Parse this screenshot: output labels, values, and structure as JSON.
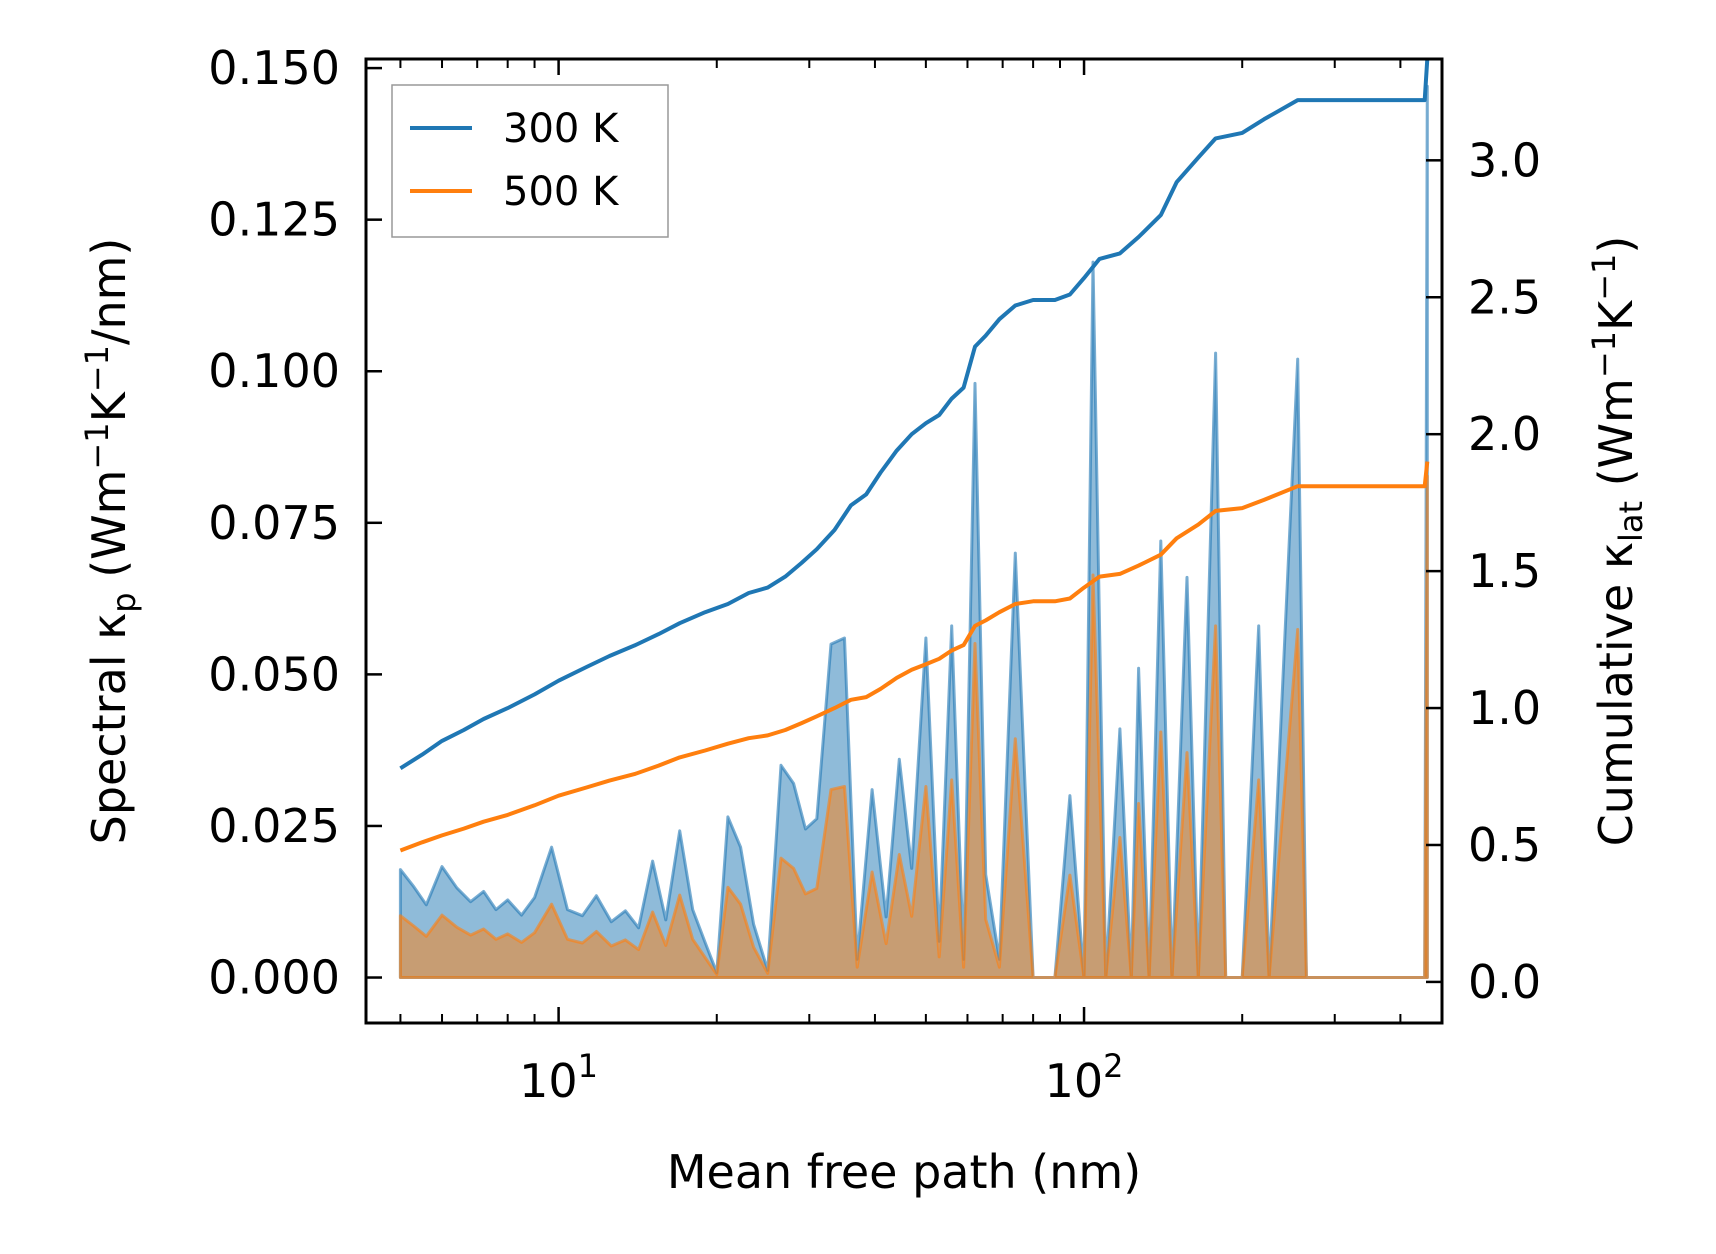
{
  "chart_data": {
    "type": "line",
    "xscale": "log",
    "xlabel": "Mean free path (nm)",
    "ylabel_left": {
      "prefix": "Spectral κ",
      "sub": "p",
      "units_prefix": " (Wm",
      "sup1": "−1",
      "units_mid": "K",
      "sup2": "−1",
      "units_suffix": "/nm)"
    },
    "ylabel_right": {
      "prefix": "Cumulative κ",
      "sub": "lat",
      "units_prefix": " (Wm",
      "sup1": "−1",
      "units_mid": "K",
      "sup2": "−1",
      "units_suffix": ")"
    },
    "xlim": [
      4.3,
      480
    ],
    "ylim_left": [
      -0.0075,
      0.1515
    ],
    "ylim_right": [
      -0.15,
      3.37
    ],
    "x_ticks": [
      {
        "value": 10,
        "base": "10",
        "exp": "1"
      },
      {
        "value": 100,
        "base": "10",
        "exp": "2"
      }
    ],
    "left_ticks": [
      {
        "value": 0.0,
        "label": "0.000"
      },
      {
        "value": 0.025,
        "label": "0.025"
      },
      {
        "value": 0.05,
        "label": "0.050"
      },
      {
        "value": 0.075,
        "label": "0.075"
      },
      {
        "value": 0.1,
        "label": "0.100"
      },
      {
        "value": 0.125,
        "label": "0.125"
      },
      {
        "value": 0.15,
        "label": "0.150"
      }
    ],
    "right_ticks": [
      {
        "value": 0.0,
        "label": "0.0"
      },
      {
        "value": 0.5,
        "label": "0.5"
      },
      {
        "value": 1.0,
        "label": "1.0"
      },
      {
        "value": 1.5,
        "label": "1.5"
      },
      {
        "value": 2.0,
        "label": "2.0"
      },
      {
        "value": 2.5,
        "label": "2.5"
      },
      {
        "value": 3.0,
        "label": "3.0"
      }
    ],
    "legend": {
      "position": "upper-left"
    },
    "series": [
      {
        "name": "300 K",
        "color": "#1f77b4",
        "cumulative": [
          [
            5.0,
            0.78
          ],
          [
            5.5,
            0.83
          ],
          [
            6.0,
            0.88
          ],
          [
            6.6,
            0.92
          ],
          [
            7.2,
            0.96
          ],
          [
            8.0,
            1.0
          ],
          [
            9.0,
            1.05
          ],
          [
            10.0,
            1.1
          ],
          [
            11.3,
            1.15
          ],
          [
            12.5,
            1.19
          ],
          [
            14.0,
            1.23
          ],
          [
            15.5,
            1.27
          ],
          [
            17.0,
            1.31
          ],
          [
            19.0,
            1.35
          ],
          [
            21.0,
            1.38
          ],
          [
            23.0,
            1.42
          ],
          [
            25.0,
            1.44
          ],
          [
            27.0,
            1.48
          ],
          [
            29.0,
            1.53
          ],
          [
            31.0,
            1.58
          ],
          [
            33.5,
            1.65
          ],
          [
            36.0,
            1.74
          ],
          [
            38.5,
            1.78
          ],
          [
            41.0,
            1.86
          ],
          [
            44.0,
            1.94
          ],
          [
            47.0,
            2.0
          ],
          [
            50.0,
            2.04
          ],
          [
            53.0,
            2.07
          ],
          [
            56.0,
            2.13
          ],
          [
            59.0,
            2.17
          ],
          [
            62.0,
            2.32
          ],
          [
            65.0,
            2.36
          ],
          [
            69.0,
            2.42
          ],
          [
            74.0,
            2.47
          ],
          [
            80.0,
            2.49
          ],
          [
            88.0,
            2.49
          ],
          [
            94.0,
            2.51
          ],
          [
            100.0,
            2.57
          ],
          [
            107.0,
            2.64
          ],
          [
            117.0,
            2.66
          ],
          [
            127.0,
            2.72
          ],
          [
            140.0,
            2.8
          ],
          [
            150.0,
            2.92
          ],
          [
            165.0,
            3.01
          ],
          [
            178.0,
            3.08
          ],
          [
            200.0,
            3.1
          ],
          [
            220.0,
            3.15
          ],
          [
            255.0,
            3.22
          ],
          [
            300.0,
            3.22
          ],
          [
            355.0,
            3.22
          ],
          [
            445.0,
            3.22
          ],
          [
            450.0,
            3.37
          ]
        ],
        "spectral": [
          [
            5.0,
            0.0178
          ],
          [
            5.3,
            0.015
          ],
          [
            5.6,
            0.012
          ],
          [
            6.0,
            0.0183
          ],
          [
            6.4,
            0.0148
          ],
          [
            6.8,
            0.0125
          ],
          [
            7.2,
            0.0142
          ],
          [
            7.6,
            0.0112
          ],
          [
            8.0,
            0.0128
          ],
          [
            8.5,
            0.0103
          ],
          [
            9.0,
            0.0132
          ],
          [
            9.7,
            0.0215
          ],
          [
            10.4,
            0.0112
          ],
          [
            11.1,
            0.0102
          ],
          [
            11.8,
            0.0135
          ],
          [
            12.6,
            0.0092
          ],
          [
            13.4,
            0.011
          ],
          [
            14.2,
            0.0082
          ],
          [
            15.1,
            0.0192
          ],
          [
            16.0,
            0.0095
          ],
          [
            17.0,
            0.0242
          ],
          [
            18.0,
            0.0112
          ],
          [
            19.0,
            0.0058
          ],
          [
            20.0,
            0.0008
          ],
          [
            21.0,
            0.0265
          ],
          [
            22.2,
            0.0215
          ],
          [
            23.5,
            0.0088
          ],
          [
            25.0,
            0.0012
          ],
          [
            26.5,
            0.035
          ],
          [
            28.0,
            0.032
          ],
          [
            29.5,
            0.0245
          ],
          [
            31.0,
            0.0262
          ],
          [
            33.0,
            0.055
          ],
          [
            35.0,
            0.056
          ],
          [
            37.0,
            0.003
          ],
          [
            39.5,
            0.031
          ],
          [
            42.0,
            0.01
          ],
          [
            44.5,
            0.036
          ],
          [
            47.0,
            0.018
          ],
          [
            50.0,
            0.056
          ],
          [
            53.0,
            0.006
          ],
          [
            56.0,
            0.058
          ],
          [
            59.0,
            0.003
          ],
          [
            62.0,
            0.098
          ],
          [
            65.0,
            0.017
          ],
          [
            69.0,
            0.003
          ],
          [
            74.0,
            0.07
          ],
          [
            80.0,
            0.0
          ],
          [
            88.0,
            0.0
          ],
          [
            94.0,
            0.03
          ],
          [
            100.0,
            0.0
          ],
          [
            104.0,
            0.118
          ],
          [
            110.0,
            0.0
          ],
          [
            117.0,
            0.041
          ],
          [
            123.0,
            0.0
          ],
          [
            127.0,
            0.051
          ],
          [
            133.0,
            0.0
          ],
          [
            140.0,
            0.072
          ],
          [
            147.0,
            0.0
          ],
          [
            157.0,
            0.066
          ],
          [
            165.0,
            0.0
          ],
          [
            178.0,
            0.103
          ],
          [
            186.0,
            0.0
          ],
          [
            200.0,
            0.0
          ],
          [
            215.0,
            0.058
          ],
          [
            225.0,
            0.0
          ],
          [
            255.0,
            0.102
          ],
          [
            265.0,
            0.0
          ],
          [
            300.0,
            0.0
          ],
          [
            355.0,
            0.0
          ],
          [
            445.0,
            0.0
          ],
          [
            450.0,
            0.147
          ]
        ]
      },
      {
        "name": "500 K",
        "color": "#ff7f0e",
        "cumulative": [
          [
            5.0,
            0.48
          ],
          [
            5.5,
            0.51
          ],
          [
            6.0,
            0.535
          ],
          [
            6.6,
            0.56
          ],
          [
            7.2,
            0.585
          ],
          [
            8.0,
            0.61
          ],
          [
            9.0,
            0.645
          ],
          [
            10.0,
            0.68
          ],
          [
            11.3,
            0.71
          ],
          [
            12.5,
            0.735
          ],
          [
            14.0,
            0.76
          ],
          [
            15.5,
            0.79
          ],
          [
            17.0,
            0.82
          ],
          [
            19.0,
            0.845
          ],
          [
            21.0,
            0.87
          ],
          [
            23.0,
            0.89
          ],
          [
            25.0,
            0.9
          ],
          [
            27.0,
            0.92
          ],
          [
            29.0,
            0.945
          ],
          [
            31.0,
            0.97
          ],
          [
            33.5,
            1.0
          ],
          [
            36.0,
            1.03
          ],
          [
            38.5,
            1.04
          ],
          [
            41.0,
            1.07
          ],
          [
            44.0,
            1.11
          ],
          [
            47.0,
            1.14
          ],
          [
            50.0,
            1.16
          ],
          [
            53.0,
            1.18
          ],
          [
            56.0,
            1.21
          ],
          [
            59.0,
            1.23
          ],
          [
            62.0,
            1.3
          ],
          [
            65.0,
            1.32
          ],
          [
            69.0,
            1.35
          ],
          [
            74.0,
            1.38
          ],
          [
            80.0,
            1.39
          ],
          [
            88.0,
            1.39
          ],
          [
            94.0,
            1.4
          ],
          [
            100.0,
            1.44
          ],
          [
            107.0,
            1.48
          ],
          [
            117.0,
            1.49
          ],
          [
            127.0,
            1.52
          ],
          [
            140.0,
            1.56
          ],
          [
            150.0,
            1.62
          ],
          [
            165.0,
            1.67
          ],
          [
            178.0,
            1.72
          ],
          [
            200.0,
            1.73
          ],
          [
            220.0,
            1.76
          ],
          [
            255.0,
            1.81
          ],
          [
            300.0,
            1.81
          ],
          [
            355.0,
            1.81
          ],
          [
            445.0,
            1.81
          ],
          [
            450.0,
            1.9
          ]
        ],
        "spectral": [
          [
            5.0,
            0.0102
          ],
          [
            5.3,
            0.0085
          ],
          [
            5.6,
            0.0068
          ],
          [
            6.0,
            0.0103
          ],
          [
            6.4,
            0.0083
          ],
          [
            6.8,
            0.007
          ],
          [
            7.2,
            0.008
          ],
          [
            7.6,
            0.0063
          ],
          [
            8.0,
            0.0072
          ],
          [
            8.5,
            0.0058
          ],
          [
            9.0,
            0.0074
          ],
          [
            9.7,
            0.0121
          ],
          [
            10.4,
            0.0063
          ],
          [
            11.1,
            0.0057
          ],
          [
            11.8,
            0.0076
          ],
          [
            12.6,
            0.0052
          ],
          [
            13.4,
            0.0062
          ],
          [
            14.2,
            0.0046
          ],
          [
            15.1,
            0.0108
          ],
          [
            16.0,
            0.0053
          ],
          [
            17.0,
            0.0136
          ],
          [
            18.0,
            0.0063
          ],
          [
            19.0,
            0.0033
          ],
          [
            20.0,
            0.0005
          ],
          [
            21.0,
            0.0149
          ],
          [
            22.2,
            0.0121
          ],
          [
            23.5,
            0.005
          ],
          [
            25.0,
            0.0007
          ],
          [
            26.5,
            0.0197
          ],
          [
            28.0,
            0.018
          ],
          [
            29.5,
            0.0138
          ],
          [
            31.0,
            0.0147
          ],
          [
            33.0,
            0.031
          ],
          [
            35.0,
            0.0315
          ],
          [
            37.0,
            0.0017
          ],
          [
            39.5,
            0.0174
          ],
          [
            42.0,
            0.0056
          ],
          [
            44.5,
            0.0203
          ],
          [
            47.0,
            0.0101
          ],
          [
            50.0,
            0.0315
          ],
          [
            53.0,
            0.0034
          ],
          [
            56.0,
            0.0326
          ],
          [
            59.0,
            0.0017
          ],
          [
            62.0,
            0.0551
          ],
          [
            65.0,
            0.0096
          ],
          [
            69.0,
            0.0017
          ],
          [
            74.0,
            0.0394
          ],
          [
            80.0,
            0.0
          ],
          [
            88.0,
            0.0
          ],
          [
            94.0,
            0.0169
          ],
          [
            100.0,
            0.0
          ],
          [
            104.0,
            0.0664
          ],
          [
            110.0,
            0.0
          ],
          [
            117.0,
            0.0231
          ],
          [
            123.0,
            0.0
          ],
          [
            127.0,
            0.0287
          ],
          [
            133.0,
            0.0
          ],
          [
            140.0,
            0.0405
          ],
          [
            147.0,
            0.0
          ],
          [
            157.0,
            0.0371
          ],
          [
            165.0,
            0.0
          ],
          [
            178.0,
            0.058
          ],
          [
            186.0,
            0.0
          ],
          [
            200.0,
            0.0
          ],
          [
            215.0,
            0.0326
          ],
          [
            225.0,
            0.0
          ],
          [
            255.0,
            0.0574
          ],
          [
            265.0,
            0.0
          ],
          [
            300.0,
            0.0
          ],
          [
            355.0,
            0.0
          ],
          [
            445.0,
            0.0
          ],
          [
            450.0,
            0.0827
          ]
        ]
      }
    ]
  }
}
